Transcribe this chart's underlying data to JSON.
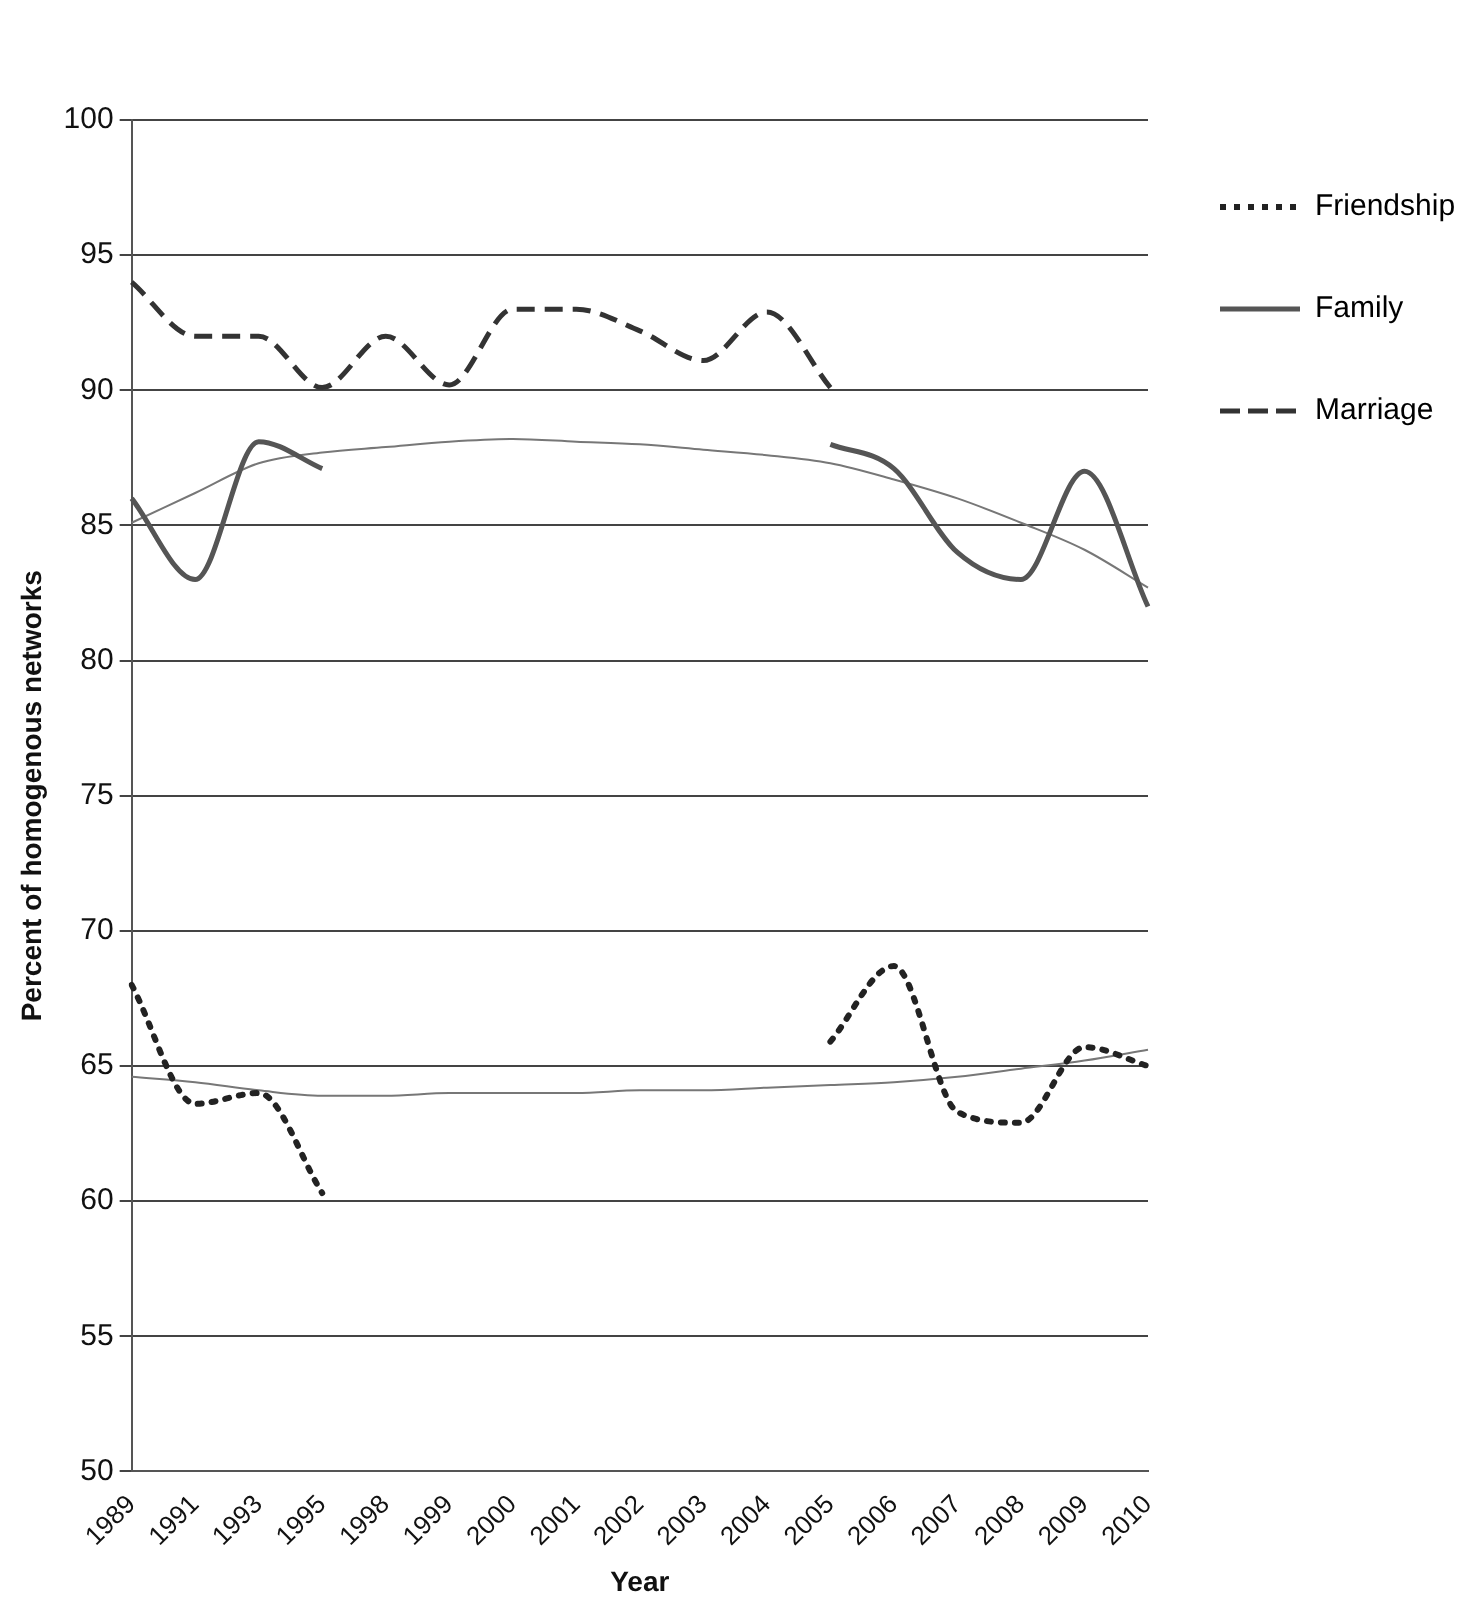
{
  "chart_data": {
    "type": "line",
    "xlabel": "Year",
    "ylabel": "Percent of homogenous networks",
    "categories": [
      "1989",
      "1991",
      "1993",
      "1995",
      "1998",
      "1999",
      "2000",
      "2001",
      "2002",
      "2003",
      "2004",
      "2005",
      "2006",
      "2007",
      "2008",
      "2009",
      "2010"
    ],
    "series": [
      {
        "name": "Friendship",
        "color": "#222222",
        "line_style": "dotted",
        "values": [
          68.0,
          63.6,
          64.0,
          60.3,
          null,
          null,
          null,
          null,
          null,
          null,
          null,
          65.9,
          68.7,
          63.3,
          62.9,
          65.7,
          65.0
        ]
      },
      {
        "name": "Family",
        "color": "#555555",
        "line_style": "solid",
        "values": [
          86.0,
          83.0,
          88.1,
          87.1,
          null,
          null,
          null,
          null,
          null,
          null,
          null,
          88.0,
          87.1,
          84.0,
          83.0,
          87.0,
          82.0
        ]
      },
      {
        "name": "Marriage",
        "color": "#333333",
        "line_style": "dashed",
        "values": [
          94.0,
          92.0,
          92.0,
          90.1,
          92.0,
          90.2,
          93.0,
          93.0,
          92.2,
          91.1,
          92.9,
          90.1,
          null,
          null,
          null,
          null,
          null
        ]
      },
      {
        "color": "#777777",
        "line_style": "solid",
        "values": [
          85.1,
          86.2,
          87.3,
          87.7,
          87.9,
          88.1,
          88.2,
          88.1,
          88.0,
          87.8,
          87.6,
          87.3,
          86.7,
          86.0,
          85.1,
          84.1,
          82.7
        ]
      },
      {
        "color": "#777777",
        "line_style": "solid",
        "values": [
          64.6,
          64.4,
          64.1,
          63.9,
          63.9,
          64.0,
          64.0,
          64.0,
          64.1,
          64.1,
          64.2,
          64.3,
          64.4,
          64.6,
          64.9,
          65.2,
          65.6
        ]
      }
    ],
    "ylim": [
      50,
      100
    ],
    "yticks": [
      50,
      55,
      60,
      65,
      70,
      75,
      80,
      85,
      90,
      95,
      100
    ],
    "grid": "y",
    "legend": "top right",
    "marker": "none"
  }
}
